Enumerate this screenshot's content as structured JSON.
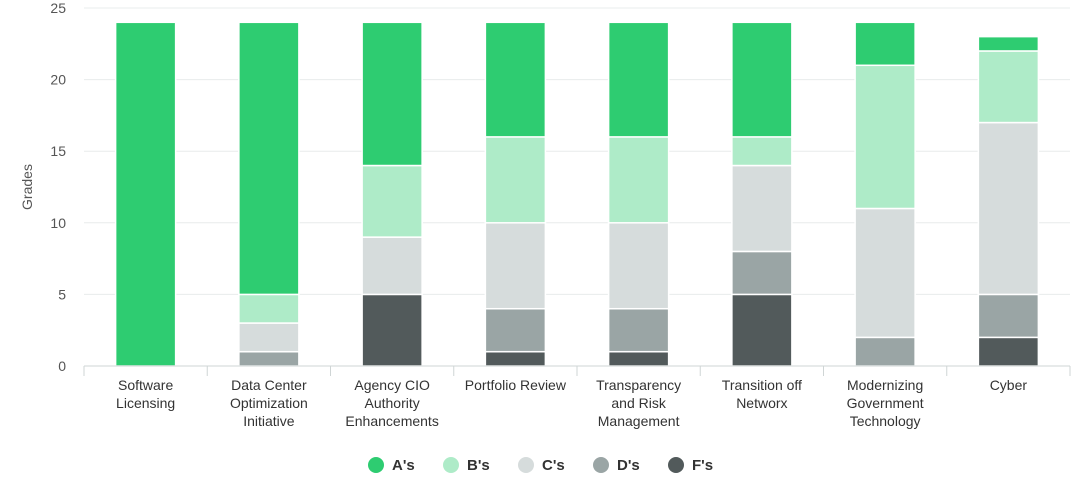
{
  "chart_data": {
    "type": "bar",
    "stacked": true,
    "ylabel": "Grades",
    "xlabel": "",
    "ylim": [
      0,
      25
    ],
    "yticks": [
      0,
      5,
      10,
      15,
      20,
      25
    ],
    "grid": true,
    "legend_position": "bottom",
    "categories": [
      [
        "Software",
        "Licensing"
      ],
      [
        "Data Center",
        "Optimization",
        "Initiative"
      ],
      [
        "Agency CIO",
        "Authority",
        "Enhancements"
      ],
      [
        "Portfolio Review"
      ],
      [
        "Transparency",
        "and Risk",
        "Management"
      ],
      [
        "Transition off",
        "Networx"
      ],
      [
        "Modernizing",
        "Government",
        "Technology"
      ],
      [
        "Cyber"
      ]
    ],
    "series": [
      {
        "name": "F's",
        "color": "#525a5b",
        "values": [
          0,
          0,
          5,
          1,
          1,
          5,
          0,
          2
        ]
      },
      {
        "name": "D's",
        "color": "#9aa5a5",
        "values": [
          0,
          1,
          0,
          3,
          3,
          3,
          2,
          3
        ]
      },
      {
        "name": "C's",
        "color": "#d6dcdc",
        "values": [
          0,
          2,
          4,
          6,
          6,
          6,
          9,
          12
        ]
      },
      {
        "name": "B's",
        "color": "#aeebc8",
        "values": [
          0,
          2,
          5,
          6,
          6,
          2,
          10,
          5
        ]
      },
      {
        "name": "A's",
        "color": "#2ecc71",
        "values": [
          24,
          19,
          10,
          8,
          8,
          8,
          3,
          1
        ]
      }
    ],
    "legend_order": [
      "A's",
      "B's",
      "C's",
      "D's",
      "F's"
    ]
  }
}
